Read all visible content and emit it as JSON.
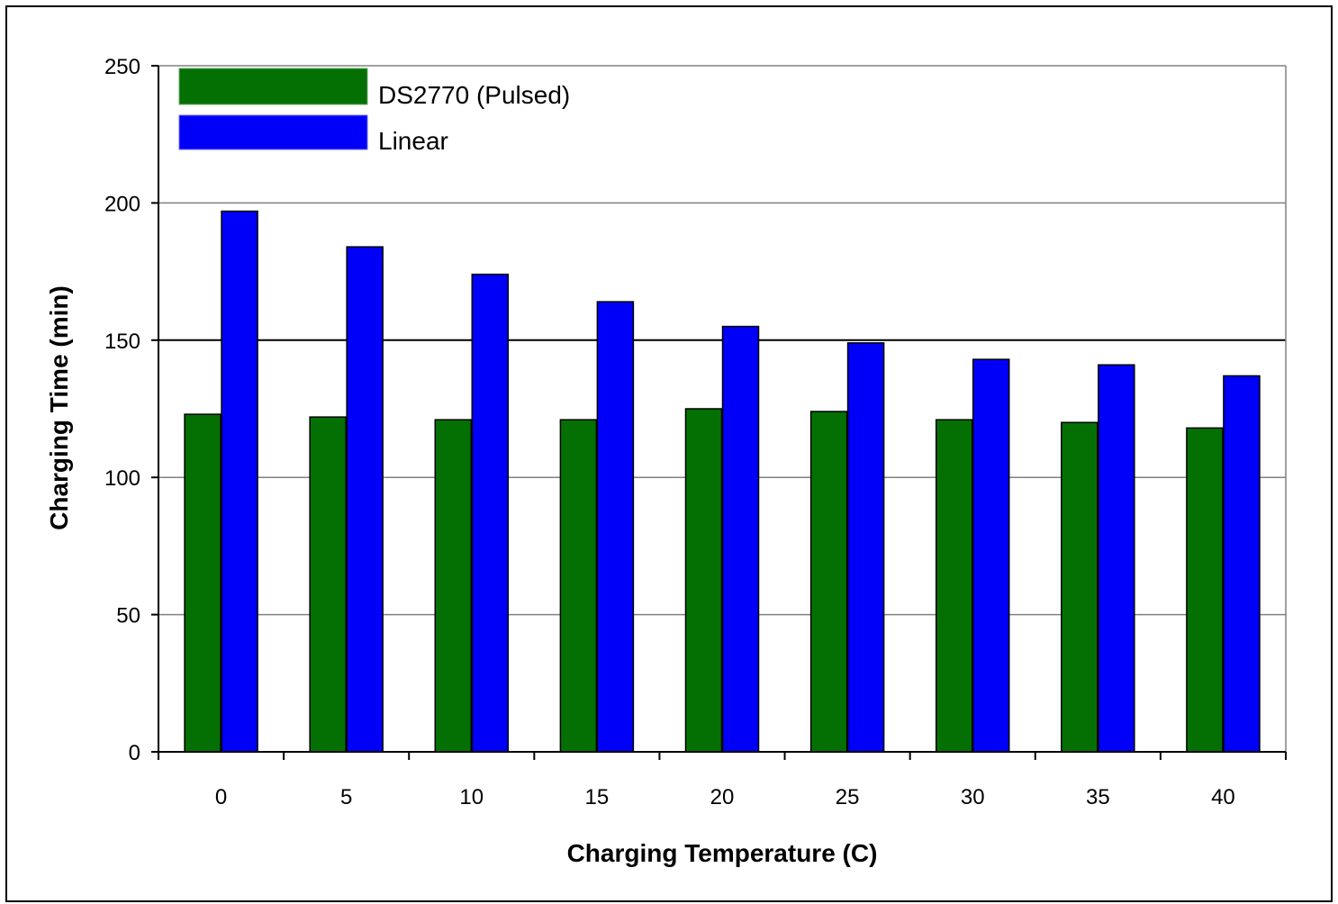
{
  "chart_data": {
    "type": "bar",
    "categories": [
      "0",
      "5",
      "10",
      "15",
      "20",
      "25",
      "30",
      "35",
      "40"
    ],
    "series": [
      {
        "name": "DS2770 (Pulsed)",
        "color": "#047004",
        "values": [
          123,
          122,
          121,
          121,
          125,
          124,
          121,
          120,
          118
        ]
      },
      {
        "name": "Linear",
        "color": "#0000f8",
        "values": [
          197,
          184,
          174,
          164,
          155,
          149,
          143,
          141,
          137
        ]
      }
    ],
    "xlabel": "Charging Temperature (C)",
    "ylabel": "Charging Time (min)",
    "ylim": [
      0,
      250
    ],
    "yticks": [
      "0",
      "50",
      "100",
      "150",
      "200",
      "250"
    ],
    "grid": true,
    "legend_position": "top-left"
  }
}
